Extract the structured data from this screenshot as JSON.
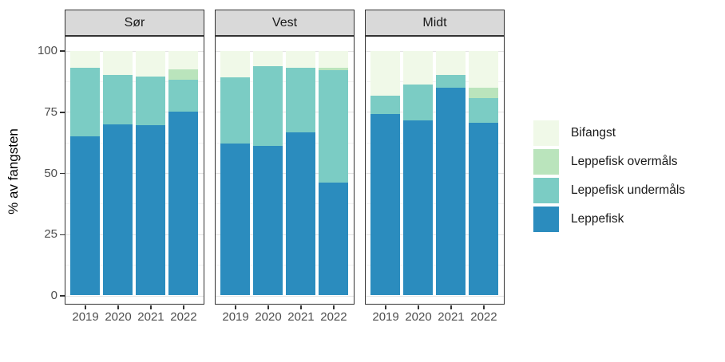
{
  "chart_data": {
    "type": "bar",
    "stacked": true,
    "title": "",
    "xlabel": "",
    "ylabel": "% av fangsten",
    "ylim": [
      0,
      100
    ],
    "yticks": [
      0,
      25,
      50,
      75,
      100
    ],
    "minor_gridlines": [
      12.5,
      37.5,
      62.5,
      87.5
    ],
    "grid": true,
    "x_categories": [
      "2019",
      "2020",
      "2021",
      "2022"
    ],
    "stack_order_bottom_to_top": [
      "Leppefisk",
      "Leppefisk undermåls",
      "Leppefisk overmåls",
      "Bifangst"
    ],
    "legend": {
      "position": "right",
      "entries": [
        {
          "label": "Bifangst",
          "color": "#f0f9e8"
        },
        {
          "label": "Leppefisk overmåls",
          "color": "#bae4bc"
        },
        {
          "label": "Leppefisk undermåls",
          "color": "#7bccc4"
        },
        {
          "label": "Leppefisk",
          "color": "#2b8cbe"
        }
      ]
    },
    "facets": [
      {
        "label": "Sør",
        "series": [
          {
            "name": "Leppefisk",
            "values": [
              65,
              70,
              69.5,
              75
            ]
          },
          {
            "name": "Leppefisk undermåls",
            "values": [
              28,
              20,
              20,
              13
            ]
          },
          {
            "name": "Leppefisk overmåls",
            "values": [
              0,
              0,
              0,
              4.5
            ]
          },
          {
            "name": "Bifangst",
            "values": [
              7,
              10,
              10.5,
              7.5
            ]
          }
        ]
      },
      {
        "label": "Vest",
        "series": [
          {
            "name": "Leppefisk",
            "values": [
              62,
              61,
              66.5,
              46
            ]
          },
          {
            "name": "Leppefisk undermåls",
            "values": [
              27,
              32.5,
              26.5,
              46
            ]
          },
          {
            "name": "Leppefisk overmåls",
            "values": [
              0,
              0,
              0,
              1
            ]
          },
          {
            "name": "Bifangst",
            "values": [
              11,
              6.5,
              7,
              7
            ]
          }
        ]
      },
      {
        "label": "Midt",
        "series": [
          {
            "name": "Leppefisk",
            "values": [
              74,
              71.5,
              85,
              70.5
            ]
          },
          {
            "name": "Leppefisk undermåls",
            "values": [
              7.5,
              14.5,
              5,
              10
            ]
          },
          {
            "name": "Leppefisk overmåls",
            "values": [
              0,
              0,
              0,
              4.5
            ]
          },
          {
            "name": "Bifangst",
            "values": [
              18.5,
              14,
              10,
              15
            ]
          }
        ]
      }
    ],
    "theme": {
      "strip_background": "#d9d9d9",
      "panel_border": "#333333",
      "major_gridline": "#e3e3e3",
      "minor_gridline": "#f2f2f2",
      "tick_mark": "#333333",
      "tick_label_color": "#4d4d4d",
      "axis_title_color": "#000000",
      "background": "#ffffff"
    }
  }
}
